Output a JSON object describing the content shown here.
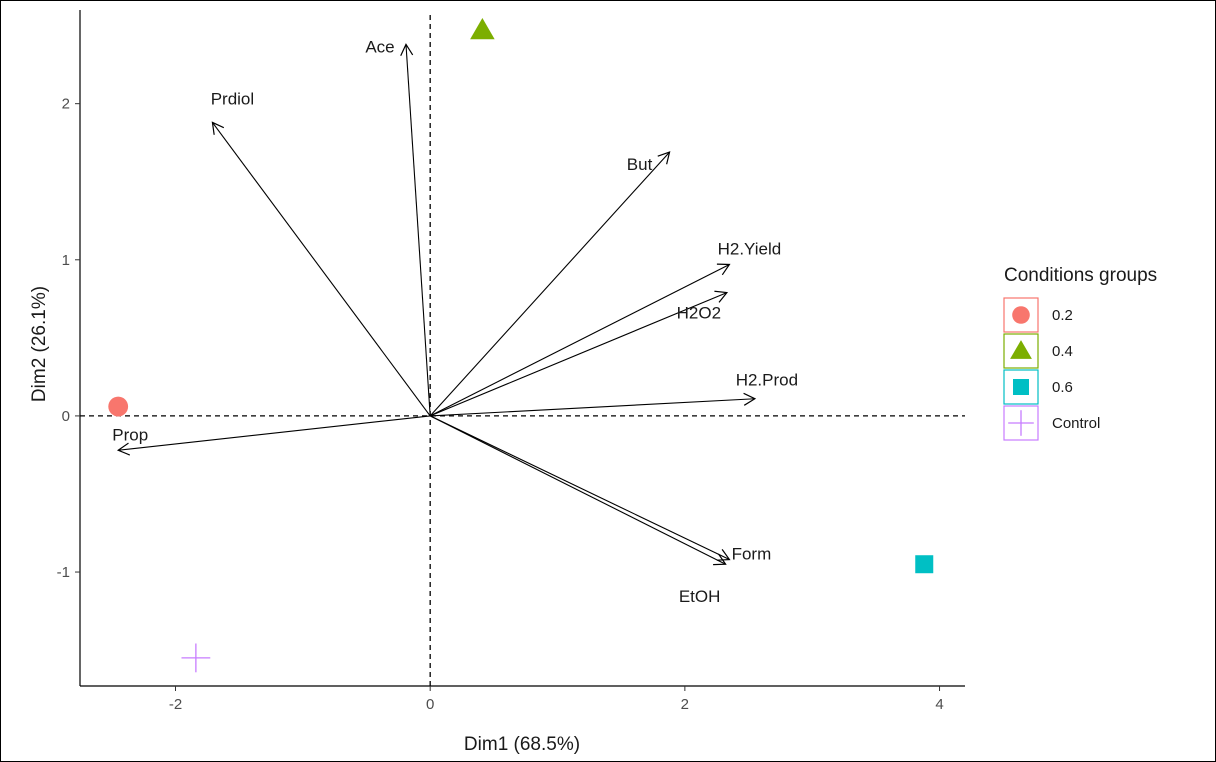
{
  "chart_data": {
    "type": "scatter",
    "subtype": "pca-biplot",
    "xlabel": "Dim1 (68.5%)",
    "ylabel": "Dim2 (26.1%)",
    "xlim": [
      -2.75,
      4.2
    ],
    "ylim": [
      -1.73,
      2.6
    ],
    "xticks": [
      -2,
      0,
      2,
      4
    ],
    "yticks": [
      -1,
      0,
      1,
      2
    ],
    "grid": false,
    "reference_lines": {
      "x": 0,
      "y": 0,
      "style": "dashed"
    },
    "variables": [
      {
        "name": "Ace",
        "x": -0.19,
        "y": 2.38
      },
      {
        "name": "Prdiol",
        "x": -1.71,
        "y": 1.88
      },
      {
        "name": "But",
        "x": 1.88,
        "y": 1.69
      },
      {
        "name": "H2.Yield",
        "x": 2.35,
        "y": 0.97
      },
      {
        "name": "H2O2",
        "x": 2.33,
        "y": 0.79
      },
      {
        "name": "H2.Prod",
        "x": 2.55,
        "y": 0.11
      },
      {
        "name": "Prop",
        "x": -2.45,
        "y": -0.22
      },
      {
        "name": "Form",
        "x": 2.35,
        "y": -0.92
      },
      {
        "name": "EtOH",
        "x": 2.32,
        "y": -0.95
      }
    ],
    "points": [
      {
        "group": "0.2",
        "x": -2.45,
        "y": 0.06
      },
      {
        "group": "0.4",
        "x": 0.41,
        "y": 2.47
      },
      {
        "group": "0.6",
        "x": 3.88,
        "y": -0.95
      },
      {
        "group": "Control",
        "x": -1.84,
        "y": -1.55
      }
    ],
    "legend": {
      "title": "Conditions groups",
      "position": "right",
      "items": [
        {
          "label": "0.2",
          "shape": "circle",
          "color": "#F8766D"
        },
        {
          "label": "0.4",
          "shape": "triangle",
          "color": "#7CAE00"
        },
        {
          "label": "0.6",
          "shape": "square",
          "color": "#00BFC4"
        },
        {
          "label": "Control",
          "shape": "plus",
          "color": "#C77CFF"
        }
      ]
    }
  }
}
